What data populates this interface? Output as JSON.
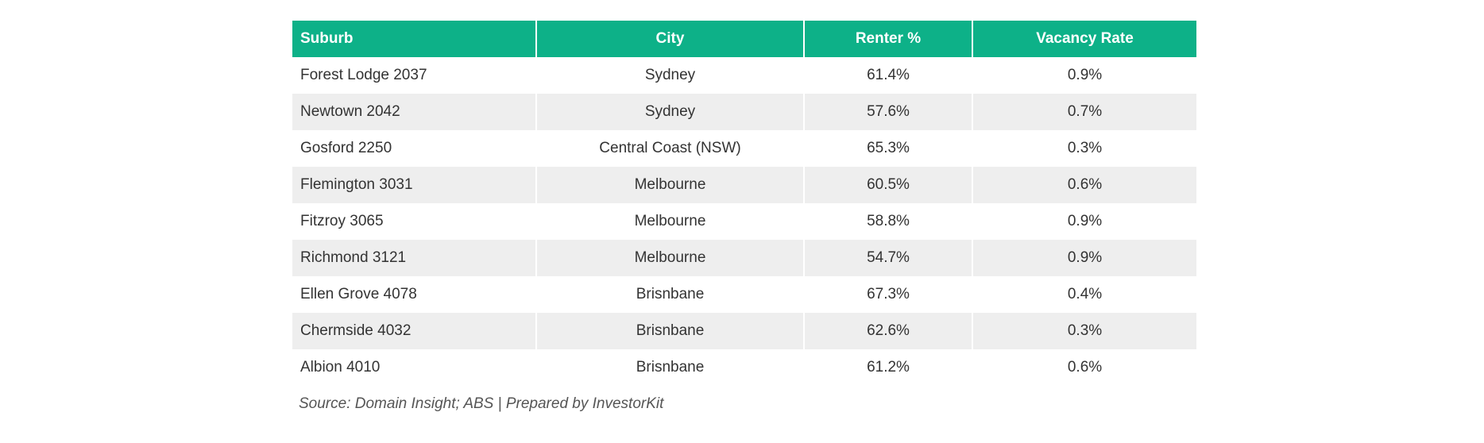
{
  "table": {
    "headers": [
      "Suburb",
      "City",
      "Renter %",
      "Vacancy Rate"
    ],
    "rows": [
      [
        "Forest Lodge 2037",
        "Sydney",
        "61.4%",
        "0.9%"
      ],
      [
        "Newtown 2042",
        "Sydney",
        "57.6%",
        "0.7%"
      ],
      [
        "Gosford 2250",
        "Central Coast (NSW)",
        "65.3%",
        "0.3%"
      ],
      [
        "Flemington 3031",
        "Melbourne",
        "60.5%",
        "0.6%"
      ],
      [
        "Fitzroy 3065",
        "Melbourne",
        "58.8%",
        "0.9%"
      ],
      [
        "Richmond 3121",
        "Melbourne",
        "54.7%",
        "0.9%"
      ],
      [
        "Ellen Grove 4078",
        "Brisnbane",
        "67.3%",
        "0.4%"
      ],
      [
        "Chermside 4032",
        "Brisnbane",
        "62.6%",
        "0.3%"
      ],
      [
        "Albion 4010",
        "Brisnbane",
        "61.2%",
        "0.6%"
      ]
    ]
  },
  "source": "Source: Domain Insight; ABS | Prepared by InvestorKit",
  "colors": {
    "header": "#0db188",
    "stripe": "#eeeeee"
  }
}
